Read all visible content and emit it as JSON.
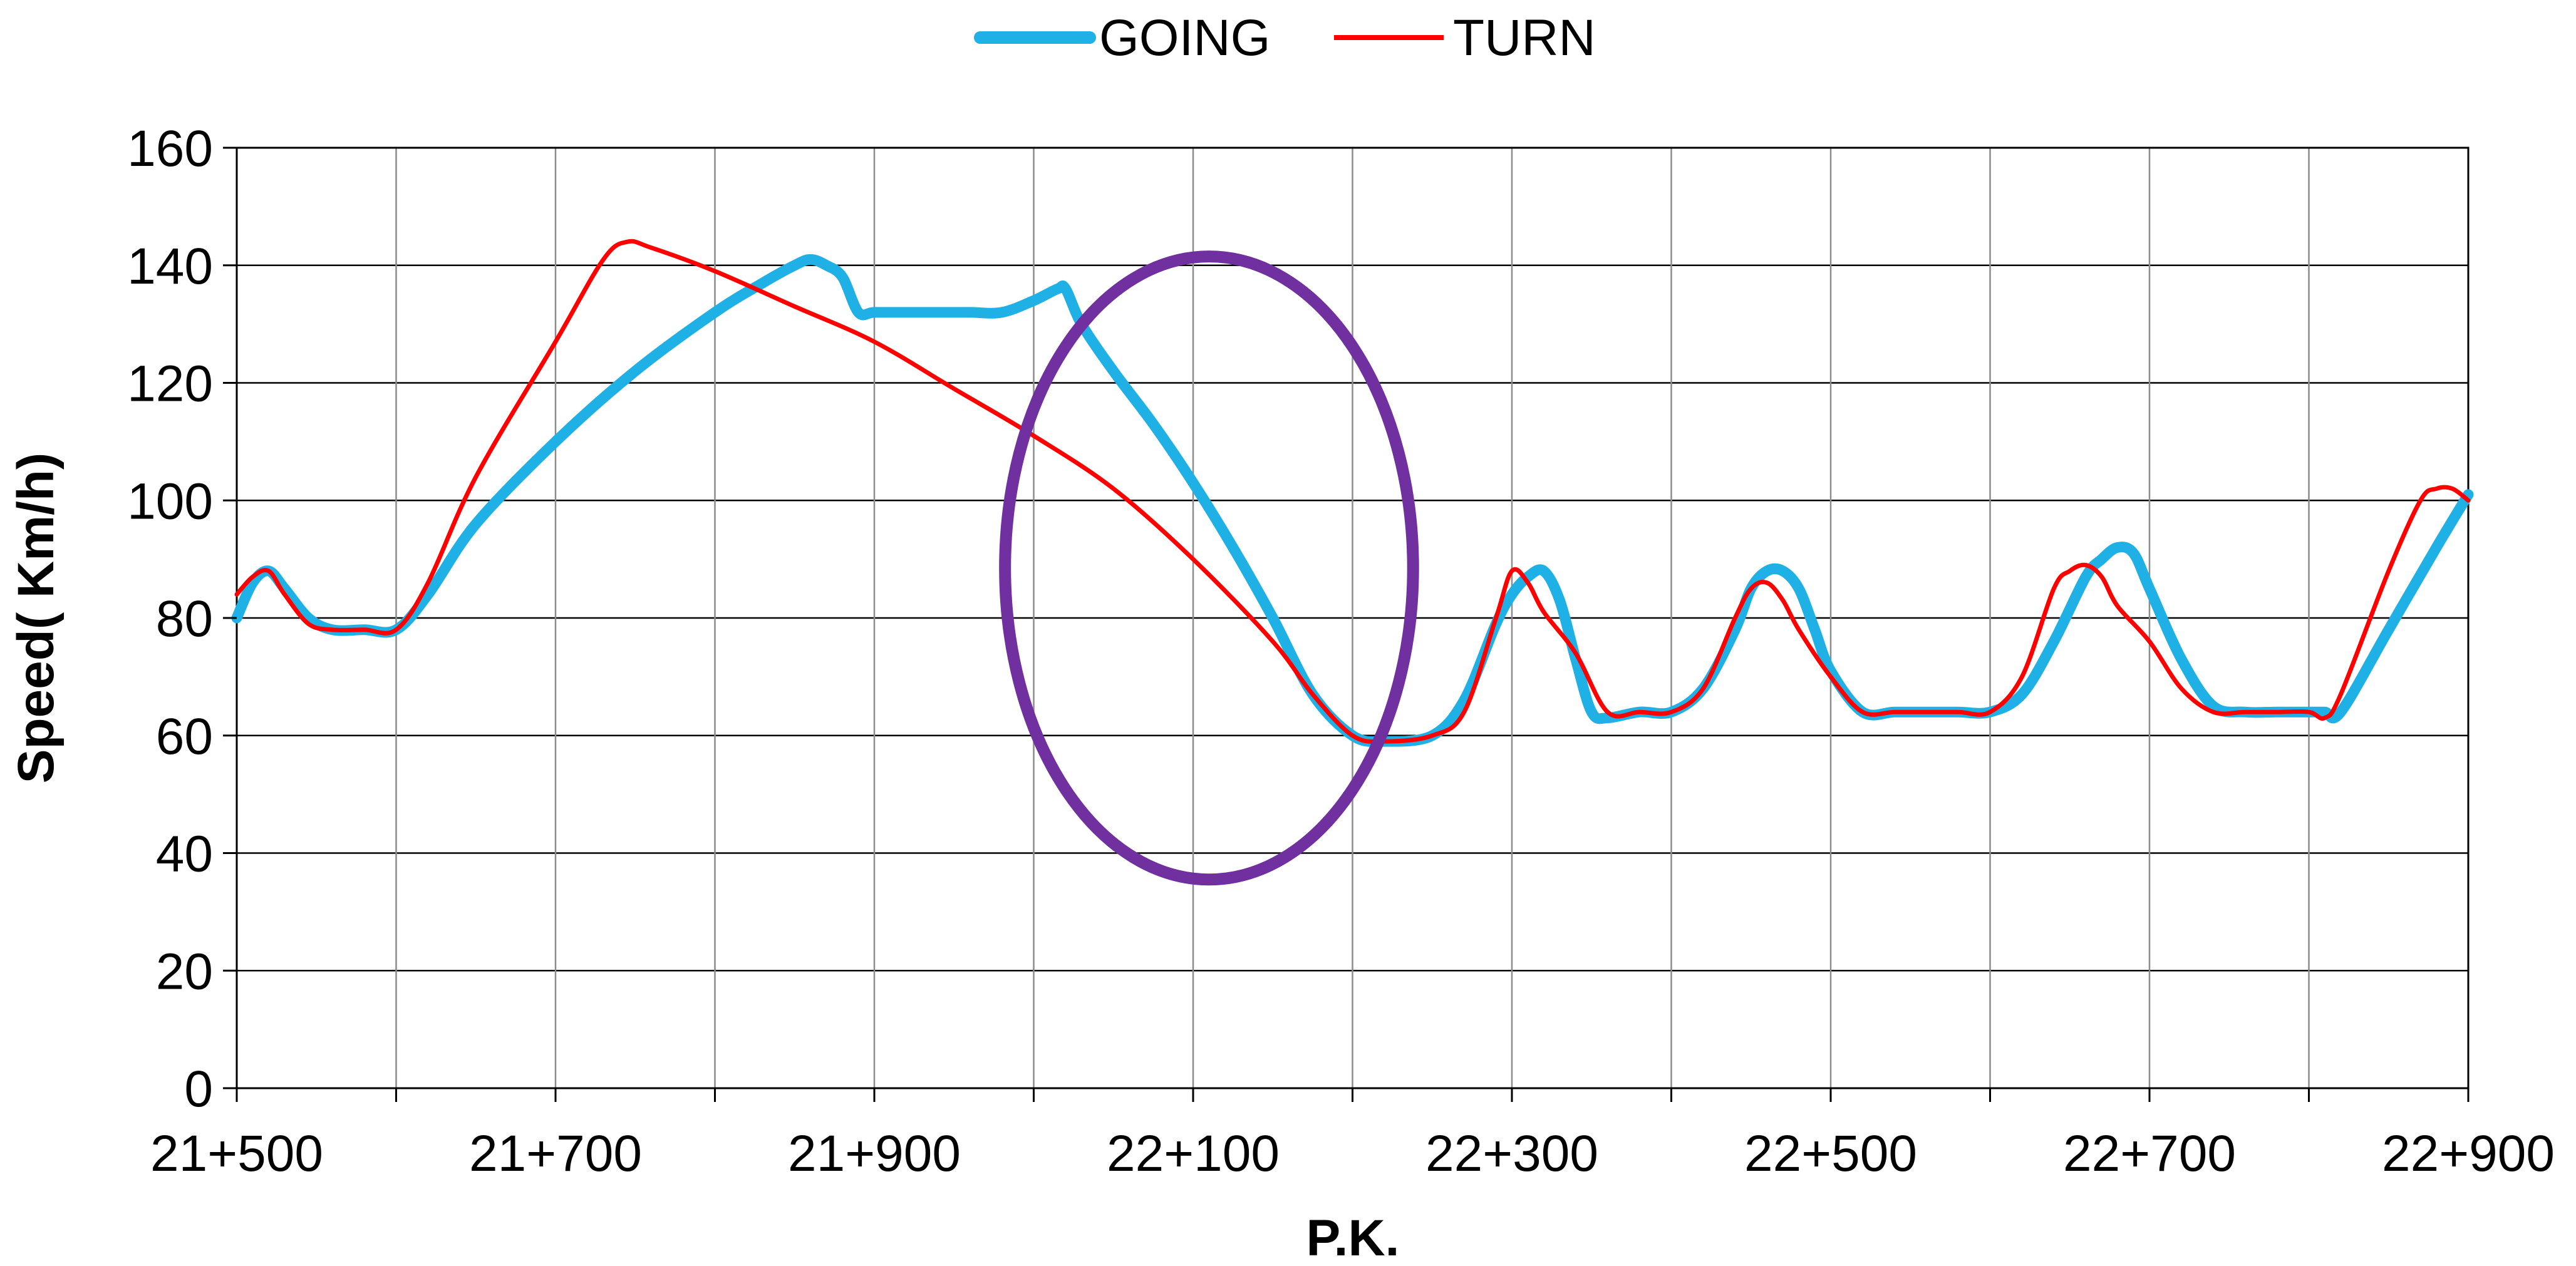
{
  "chart_data": {
    "type": "line",
    "title": "",
    "xlabel": "P.K.",
    "ylabel": "Speed( Km/h)",
    "x_tick_labels": [
      "21+500",
      "21+700",
      "21+900",
      "22+100",
      "22+300",
      "22+500",
      "22+700",
      "22+900"
    ],
    "x_ticks_m": [
      21500,
      21700,
      21900,
      22100,
      22300,
      22500,
      22700,
      22900
    ],
    "xlim_m": [
      21500,
      22900
    ],
    "x_minor_step_m": 100,
    "ylim": [
      0,
      160
    ],
    "y_ticks": [
      0,
      20,
      40,
      60,
      80,
      100,
      120,
      140,
      160
    ],
    "grid": true,
    "legend": "top-center",
    "series": [
      {
        "name": "GOING",
        "color": "#1fb0e6",
        "x": [
          21500,
          21510,
          21520,
          21530,
          21545,
          21560,
          21580,
          21600,
          21620,
          21650,
          21700,
          21750,
          21800,
          21830,
          21850,
          21860,
          21870,
          21880,
          21890,
          21900,
          21920,
          21940,
          21960,
          21980,
          22000,
          22015,
          22020,
          22030,
          22050,
          22075,
          22100,
          22125,
          22150,
          22175,
          22200,
          22220,
          22250,
          22270,
          22290,
          22300,
          22310,
          22320,
          22330,
          22340,
          22350,
          22360,
          22380,
          22400,
          22420,
          22440,
          22450,
          22460,
          22470,
          22480,
          22490,
          22500,
          22520,
          22540,
          22560,
          22580,
          22600,
          22620,
          22640,
          22660,
          22670,
          22680,
          22690,
          22700,
          22720,
          22740,
          22760,
          22780,
          22800,
          22810,
          22820,
          22850,
          22880,
          22900
        ],
        "y": [
          80,
          86,
          88,
          85,
          80,
          78,
          78,
          78,
          84,
          96,
          110,
          122,
          132,
          137,
          140,
          141,
          140,
          138,
          132,
          132,
          132,
          132,
          132,
          132,
          134,
          136,
          136,
          130,
          122,
          113,
          103,
          92,
          80,
          67,
          60,
          59,
          60,
          66,
          79,
          84,
          87,
          88,
          83,
          73,
          64,
          63,
          64,
          64,
          68,
          78,
          85,
          88,
          88,
          85,
          78,
          71,
          64,
          64,
          64,
          64,
          64,
          67,
          76,
          87,
          90,
          92,
          91,
          85,
          73,
          65,
          64,
          64,
          64,
          64,
          64,
          78,
          92,
          101
        ]
      },
      {
        "name": "TURN",
        "color": "#ff0000",
        "x": [
          21500,
          21510,
          21520,
          21530,
          21545,
          21560,
          21580,
          21600,
          21620,
          21650,
          21700,
          21730,
          21745,
          21760,
          21800,
          21850,
          21900,
          21950,
          22000,
          22050,
          22100,
          22150,
          22175,
          22200,
          22220,
          22250,
          22270,
          22290,
          22300,
          22310,
          22320,
          22340,
          22360,
          22380,
          22400,
          22420,
          22440,
          22450,
          22460,
          22470,
          22480,
          22500,
          22520,
          22540,
          22560,
          22580,
          22600,
          22620,
          22640,
          22650,
          22660,
          22670,
          22680,
          22700,
          22720,
          22740,
          22760,
          22780,
          22800,
          22810,
          22820,
          22850,
          22870,
          22880,
          22890,
          22900
        ],
        "y": [
          84,
          87,
          88,
          84,
          79,
          78,
          78,
          78,
          86,
          104,
          127,
          141,
          144,
          143,
          139,
          133,
          127,
          119,
          111,
          102,
          90,
          76,
          67,
          60,
          59,
          60,
          64,
          80,
          88,
          86,
          81,
          74,
          64,
          64,
          64,
          68,
          80,
          85,
          86,
          83,
          78,
          70,
          64,
          64,
          64,
          64,
          64,
          70,
          85,
          88,
          89,
          87,
          82,
          76,
          68,
          64,
          64,
          64,
          64,
          63,
          67,
          88,
          100,
          102,
          102,
          100
        ]
      }
    ]
  },
  "annotation": {
    "type": "ellipse",
    "color": "#7030a0",
    "center_x_m": 22110,
    "center_y": 88.5,
    "radius_x_m": 128,
    "radius_y": 53
  }
}
